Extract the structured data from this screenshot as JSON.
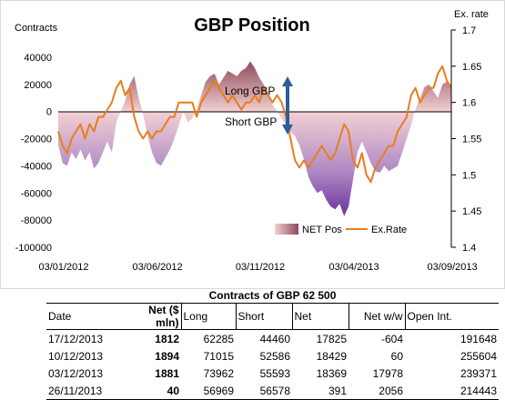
{
  "chart_data": {
    "type": "area",
    "title": "GBP Position",
    "ylabel_left": "Contracts",
    "ylabel_right": "Ex. rate",
    "x_ticks": [
      "03/01/2012",
      "03/06/2012",
      "03/11/2012",
      "03/04/2013",
      "03/09/2013"
    ],
    "y_left_ticks": [
      "40000",
      "20000",
      "0",
      "-20000",
      "-40000",
      "-60000",
      "-80000",
      "-100000"
    ],
    "y_left_range": [
      -100000,
      40000
    ],
    "y_right_ticks": [
      "1.7",
      "1.65",
      "1.6",
      "1.55",
      "1.5",
      "1.45",
      "1.4"
    ],
    "y_right_range": [
      1.4,
      1.7
    ],
    "legend": {
      "net_pos": "NET Pos",
      "ex_rate": "Ex.Rate",
      "placement": "bottom-right"
    },
    "annotations": {
      "long": "Long GBP",
      "short": "Short GBP"
    },
    "x_tick_weeks": [
      0,
      21,
      44,
      65,
      87
    ],
    "series": [
      {
        "name": "NET Pos",
        "values": [
          -25000,
          -38000,
          -40000,
          -30000,
          -35000,
          -28000,
          -36000,
          -30000,
          -42000,
          -38000,
          -30000,
          -22000,
          -30000,
          -8000,
          0,
          8000,
          20000,
          26000,
          10000,
          -2000,
          -18000,
          -30000,
          -38000,
          -40000,
          -34000,
          -28000,
          -20000,
          -10000,
          0,
          -8000,
          -5000,
          2000,
          12000,
          22000,
          26000,
          28000,
          20000,
          25000,
          30000,
          28000,
          26000,
          30000,
          32000,
          37000,
          32000,
          25000,
          20000,
          12000,
          5000,
          0,
          -5000,
          -10000,
          -15000,
          -18000,
          -25000,
          -35000,
          -48000,
          -55000,
          -60000,
          -58000,
          -65000,
          -70000,
          -72000,
          -68000,
          -77000,
          -70000,
          -50000,
          -30000,
          -22000,
          -30000,
          -38000,
          -44000,
          -45000,
          -40000,
          -44000,
          -42000,
          -40000,
          -30000,
          -20000,
          -10000,
          2000,
          10000,
          18000,
          20000,
          15000,
          10000,
          20000,
          22000,
          20000
        ],
        "color": "#8b5a9a"
      },
      {
        "name": "Ex.Rate",
        "values": [
          1.56,
          1.54,
          1.53,
          1.55,
          1.56,
          1.57,
          1.55,
          1.57,
          1.56,
          1.58,
          1.58,
          1.59,
          1.6,
          1.62,
          1.63,
          1.61,
          1.62,
          1.58,
          1.56,
          1.55,
          1.56,
          1.55,
          1.56,
          1.56,
          1.57,
          1.58,
          1.58,
          1.6,
          1.6,
          1.6,
          1.6,
          1.58,
          1.6,
          1.61,
          1.62,
          1.63,
          1.62,
          1.61,
          1.6,
          1.61,
          1.6,
          1.59,
          1.6,
          1.6,
          1.61,
          1.6,
          1.62,
          1.61,
          1.6,
          1.61,
          1.6,
          1.58,
          1.55,
          1.52,
          1.51,
          1.52,
          1.51,
          1.52,
          1.53,
          1.54,
          1.53,
          1.52,
          1.53,
          1.55,
          1.57,
          1.56,
          1.52,
          1.51,
          1.53,
          1.5,
          1.49,
          1.51,
          1.52,
          1.53,
          1.54,
          1.54,
          1.56,
          1.57,
          1.58,
          1.61,
          1.62,
          1.6,
          1.61,
          1.62,
          1.62,
          1.64,
          1.65,
          1.63,
          1.62
        ],
        "color": "#e87d1e"
      }
    ]
  },
  "table": {
    "title": "Contracts of GBP 62 500",
    "headers": [
      "Date",
      "Net ($ mln)",
      "Long",
      "Short",
      "Net",
      "Net w/w",
      "Open Int."
    ],
    "rows": [
      [
        "17/12/2013",
        "1812",
        "62285",
        "44460",
        "17825",
        "-604",
        "191648"
      ],
      [
        "10/12/2013",
        "1894",
        "71015",
        "52586",
        "18429",
        "60",
        "255604"
      ],
      [
        "03/12/2013",
        "1881",
        "73962",
        "55593",
        "18369",
        "17978",
        "239371"
      ],
      [
        "26/11/2013",
        "40",
        "56969",
        "56578",
        "391",
        "2056",
        "214443"
      ]
    ]
  }
}
